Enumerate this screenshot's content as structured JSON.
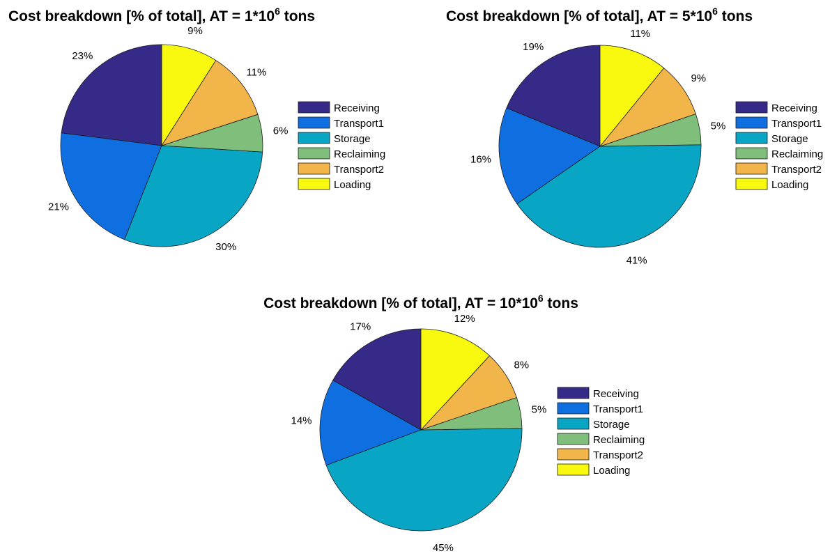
{
  "chart_data": [
    {
      "type": "pie",
      "title": {
        "prefix": "Cost breakdown [% of total], AT = 1*10",
        "exponent": "6",
        "suffix": " tons"
      },
      "labels": [
        "Receiving",
        "Transport1",
        "Storage",
        "Reclaiming",
        "Transport2",
        "Loading"
      ],
      "values": [
        23,
        21,
        30,
        6,
        11,
        9
      ],
      "value_labels": [
        "23%",
        "21%",
        "30%",
        "6%",
        "11%",
        "9%"
      ],
      "legend": "right"
    },
    {
      "type": "pie",
      "title": {
        "prefix": "Cost breakdown [% of total], AT = 5*10",
        "exponent": "6",
        "suffix": " tons"
      },
      "labels": [
        "Receiving",
        "Transport1",
        "Storage",
        "Reclaiming",
        "Transport2",
        "Loading"
      ],
      "values": [
        19,
        16,
        41,
        5,
        9,
        11
      ],
      "value_labels": [
        "19%",
        "16%",
        "41%",
        "5%",
        "9%",
        "11%"
      ],
      "legend": "right"
    },
    {
      "type": "pie",
      "title": {
        "prefix": "Cost breakdown [% of total], AT = 10*10",
        "exponent": "6",
        "suffix": " tons"
      },
      "labels": [
        "Receiving",
        "Transport1",
        "Storage",
        "Reclaiming",
        "Transport2",
        "Loading"
      ],
      "values": [
        17,
        14,
        45,
        5,
        8,
        12
      ],
      "value_labels": [
        "17%",
        "14%",
        "45%",
        "5%",
        "8%",
        "12%"
      ],
      "legend": "right"
    }
  ],
  "colors": [
    "#352a87",
    "#0f6fe0",
    "#08a6c4",
    "#7fbf7b",
    "#f1b54a",
    "#f9f90f"
  ]
}
